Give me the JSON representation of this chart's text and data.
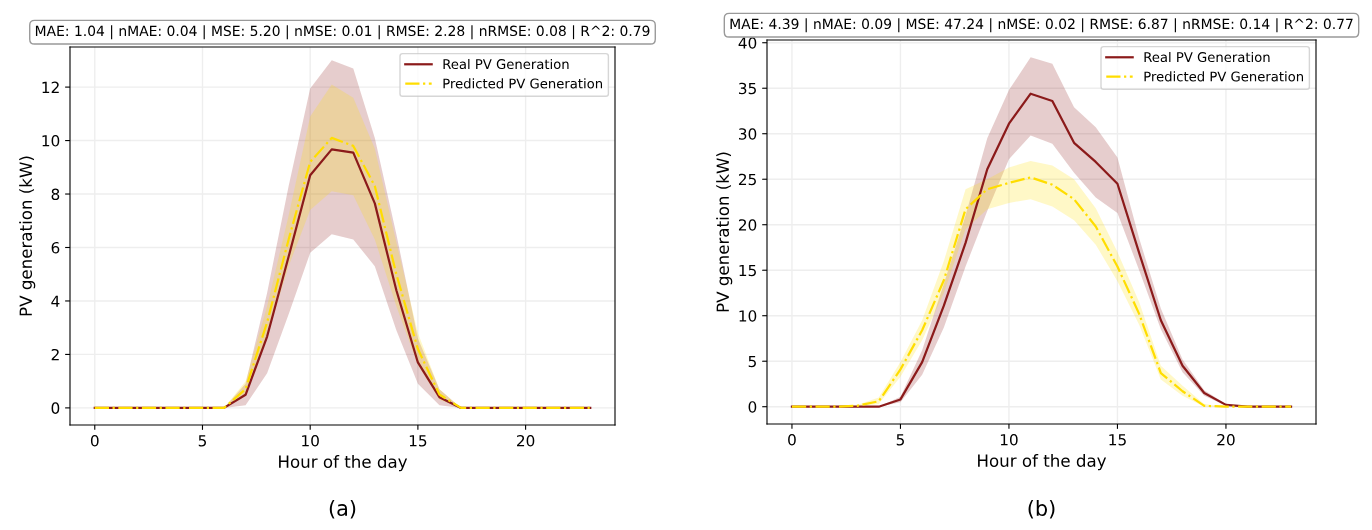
{
  "chart_data": [
    {
      "type": "line",
      "title": "MAE: 1.04 | nMAE: 0.04 | MSE: 5.20 | nMSE: 0.01 | RMSE: 2.28 | nRMSE: 0.08 | R^2: 0.79",
      "xlabel": "Hour of the day",
      "ylabel": "PV generation (kW)",
      "annotations": [
        "(a)"
      ],
      "x": [
        0,
        1,
        2,
        3,
        4,
        5,
        6,
        7,
        8,
        9,
        10,
        11,
        12,
        13,
        14,
        15,
        16,
        17,
        18,
        19,
        20,
        21,
        22,
        23
      ],
      "xlim": [
        -1.15,
        24.15
      ],
      "xticks": [
        0,
        5,
        10,
        15,
        20
      ],
      "ylim": [
        -0.64,
        13.5
      ],
      "yticks": [
        0,
        2,
        4,
        6,
        8,
        10,
        12
      ],
      "grid": true,
      "legend": "top right",
      "marker": "none",
      "series": [
        {
          "name": "Real PV Generation",
          "color": "#8b1a1a",
          "line_style": "solid",
          "values": [
            0,
            0,
            0,
            0,
            0,
            0,
            0,
            0.49,
            2.67,
            5.66,
            8.7,
            9.67,
            9.55,
            7.65,
            4.4,
            1.7,
            0.4,
            0,
            0,
            0,
            0,
            0,
            0,
            0
          ],
          "lower": [
            0,
            0,
            0,
            0,
            0,
            0,
            0,
            0.1,
            1.3,
            3.5,
            5.8,
            6.5,
            6.3,
            5.3,
            2.9,
            0.9,
            0.1,
            0,
            0,
            0,
            0,
            0,
            0,
            0
          ],
          "upper": [
            0,
            0,
            0,
            0,
            0,
            0,
            0,
            0.9,
            4.3,
            8.3,
            11.95,
            13.0,
            12.7,
            10.1,
            6.5,
            2.6,
            0.7,
            0,
            0,
            0,
            0,
            0,
            0,
            0
          ]
        },
        {
          "name": "Predicted PV Generation",
          "color": "#ffdd00",
          "line_style": "dashed",
          "values": [
            0,
            0,
            0,
            0,
            0,
            0,
            0,
            0.7,
            3.2,
            6.3,
            9.2,
            10.1,
            9.8,
            8.3,
            5.0,
            2.2,
            0.5,
            0,
            0,
            0,
            0,
            0,
            0,
            0
          ],
          "lower": [
            0,
            0,
            0,
            0,
            0,
            0,
            0,
            0.5,
            2.7,
            5.3,
            7.4,
            8.1,
            7.95,
            6.3,
            3.8,
            1.6,
            0.3,
            0,
            0,
            0,
            0,
            0,
            0,
            0
          ],
          "upper": [
            0,
            0,
            0,
            0,
            0,
            0,
            0,
            1.0,
            3.8,
            7.2,
            10.9,
            12.1,
            11.6,
            9.7,
            6.2,
            2.8,
            0.7,
            0,
            0,
            0,
            0,
            0,
            0,
            0
          ]
        }
      ]
    },
    {
      "type": "line",
      "title": "MAE: 4.39 | nMAE: 0.09 | MSE: 47.24 | nMSE: 0.02 | RMSE: 6.87 | nRMSE: 0.14 | R^2: 0.77",
      "xlabel": "Hour of the day",
      "ylabel": "PV generation (kW)",
      "annotations": [
        "(b)"
      ],
      "x": [
        0,
        1,
        2,
        3,
        4,
        5,
        6,
        7,
        8,
        9,
        10,
        11,
        12,
        13,
        14,
        15,
        16,
        17,
        18,
        19,
        20,
        21,
        22,
        23
      ],
      "xlim": [
        -1.15,
        24.15
      ],
      "xticks": [
        0,
        5,
        10,
        15,
        20
      ],
      "ylim": [
        -1.9,
        40.3
      ],
      "yticks": [
        0,
        5,
        10,
        15,
        20,
        25,
        30,
        35,
        40
      ],
      "grid": true,
      "legend": "top right",
      "marker": "none",
      "series": [
        {
          "name": "Real PV Generation",
          "color": "#8b1a1a",
          "line_style": "solid",
          "values": [
            0,
            0,
            0,
            0,
            0,
            0.8,
            4.9,
            11.1,
            18,
            26.1,
            31.1,
            34.4,
            33.6,
            29.0,
            26.9,
            24.5,
            16.9,
            9.5,
            4.5,
            1.5,
            0.2,
            0,
            0,
            0
          ],
          "lower": [
            0,
            0,
            0,
            0,
            0,
            0.5,
            3.5,
            8.7,
            15.4,
            21.5,
            27.2,
            29.8,
            28.9,
            25.7,
            23.0,
            21.3,
            15.0,
            8.5,
            3.8,
            1.2,
            0.1,
            0,
            0,
            0
          ],
          "upper": [
            0,
            0,
            0,
            0,
            0,
            1.1,
            6.2,
            13.5,
            21,
            29.5,
            34.8,
            38.4,
            37.7,
            32.9,
            30.7,
            27.4,
            18.5,
            10.8,
            5.2,
            1.8,
            0.3,
            0,
            0,
            0
          ]
        },
        {
          "name": "Predicted PV Generation",
          "color": "#ffdd00",
          "line_style": "dashed",
          "values": [
            0,
            0,
            0,
            0.1,
            0.6,
            4.1,
            8.4,
            13.9,
            21.7,
            23.9,
            24.6,
            25.2,
            24.4,
            22.8,
            19.8,
            15.4,
            10.2,
            3.7,
            1.7,
            0.1,
            0,
            0,
            0,
            0
          ],
          "lower": [
            0,
            0,
            0,
            0,
            0.3,
            3.3,
            7.3,
            12.5,
            19.5,
            21.7,
            22.4,
            22.8,
            22.0,
            20.5,
            17.8,
            13.8,
            9.0,
            3.0,
            1.2,
            0,
            0,
            0,
            0,
            0
          ],
          "upper": [
            0,
            0,
            0,
            0.2,
            1.0,
            4.9,
            9.5,
            16,
            23.9,
            25,
            26.3,
            27.0,
            26.5,
            25.0,
            21.8,
            17.0,
            11.5,
            4.5,
            2.3,
            0.3,
            0,
            0,
            0,
            0
          ]
        }
      ]
    }
  ]
}
